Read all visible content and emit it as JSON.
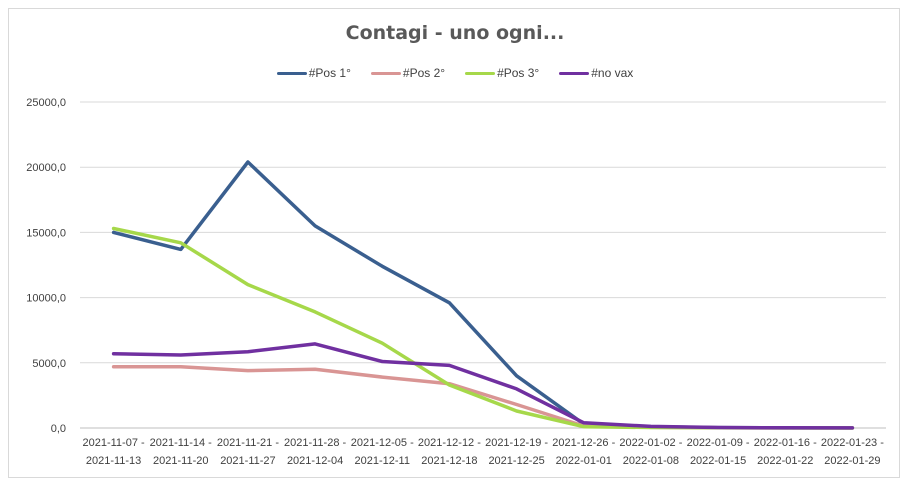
{
  "chart_data": {
    "type": "line",
    "title": "Contagi - uno ogni...",
    "xlabel": "",
    "ylabel": "",
    "ylim": [
      0,
      25000
    ],
    "y_ticks": [
      "0,0",
      "5000,0",
      "10000,0",
      "15000,0",
      "20000,0",
      "25000,0"
    ],
    "y_tick_values": [
      0,
      5000,
      10000,
      15000,
      20000,
      25000
    ],
    "grid": "horizontal",
    "legend_position": "top",
    "categories": [
      {
        "line1": "2021-11-07 -",
        "line2": "2021-11-13"
      },
      {
        "line1": "2021-11-14 -",
        "line2": "2021-11-20"
      },
      {
        "line1": "2021-11-21 -",
        "line2": "2021-11-27"
      },
      {
        "line1": "2021-11-28 -",
        "line2": "2021-12-04"
      },
      {
        "line1": "2021-12-05 -",
        "line2": "2021-12-11"
      },
      {
        "line1": "2021-12-12 -",
        "line2": "2021-12-18"
      },
      {
        "line1": "2021-12-19 -",
        "line2": "2021-12-25"
      },
      {
        "line1": "2021-12-26 -",
        "line2": "2022-01-01"
      },
      {
        "line1": "2022-01-02 -",
        "line2": "2022-01-08"
      },
      {
        "line1": "2022-01-09 -",
        "line2": "2022-01-15"
      },
      {
        "line1": "2022-01-16 -",
        "line2": "2022-01-22"
      },
      {
        "line1": "2022-01-23 -",
        "line2": "2022-01-29"
      }
    ],
    "series": [
      {
        "name": "#Pos 1°",
        "color": "#3a5f8f",
        "values": [
          15000,
          13700,
          20400,
          15500,
          12400,
          9600,
          4000,
          300,
          100,
          30,
          10,
          5
        ]
      },
      {
        "name": "#Pos 2°",
        "color": "#d99594",
        "values": [
          4700,
          4700,
          4400,
          4500,
          3900,
          3400,
          1800,
          150,
          60,
          20,
          10,
          5
        ]
      },
      {
        "name": "#Pos 3°",
        "color": "#a6d84a",
        "values": [
          15300,
          14200,
          11000,
          8900,
          6500,
          3300,
          1300,
          100,
          40,
          15,
          5,
          3
        ]
      },
      {
        "name": "#no vax",
        "color": "#7030a0",
        "values": [
          5700,
          5600,
          5850,
          6450,
          5100,
          4800,
          3000,
          400,
          120,
          40,
          15,
          5
        ]
      }
    ]
  }
}
